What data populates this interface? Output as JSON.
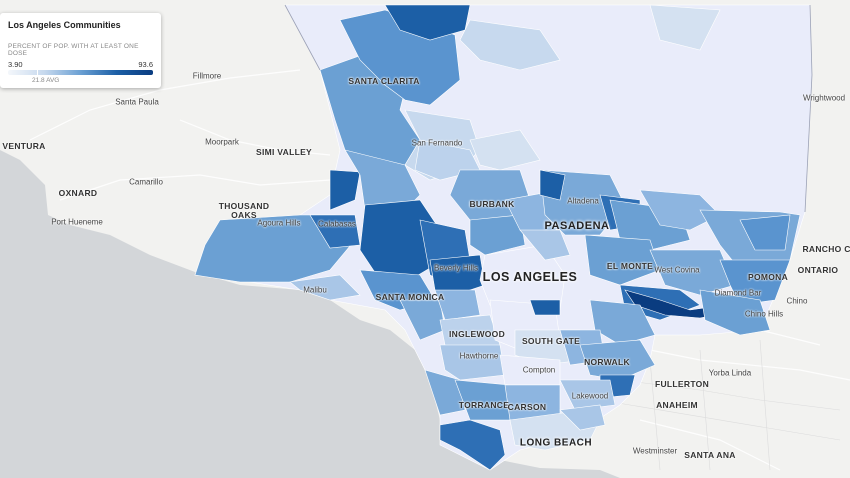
{
  "legend": {
    "title": "Los Angeles Communities",
    "subtitle": "PERCENT OF POP. WITH AT LEAST ONE DOSE",
    "min": "3.90",
    "max": "93.6",
    "avg": "21.8 AVG",
    "colors": [
      "#f4f7fb",
      "#c7d9ee",
      "#6ba0d3",
      "#1c5fa6",
      "#0a3c80"
    ]
  },
  "places": {
    "fillmore": "Fillmore",
    "santa_paula": "Santa Paula",
    "ventura": "VENTURA",
    "moorpark": "Moorpark",
    "simi_valley": "SIMI VALLEY",
    "oxnard": "OXNARD",
    "camarillo": "Camarillo",
    "thousand_oaks_1": "THOUSAND",
    "thousand_oaks_2": "OAKS",
    "port_hueneme": "Port Hueneme",
    "santa_clarita": "SANTA CLARITA",
    "wrightwood": "Wrightwood",
    "san_fernando": "San Fernando",
    "agoura_hills": "Agoura Hills",
    "calabasas": "Calabasas",
    "burbank": "BURBANK",
    "altadena": "Altadena",
    "pasadena": "PASADENA",
    "rancho_co": "RANCHO CO",
    "ontario": "ONTARIO",
    "el_monte": "EL MONTE",
    "west_covina": "West Covina",
    "pomona": "POMONA",
    "beverly_hills": "Beverly Hills",
    "los_angeles": "LOS ANGELES",
    "malibu": "Malibu",
    "santa_monica": "SANTA MONICA",
    "diamond_bar": "Diamond Bar",
    "chino": "Chino",
    "chino_hills": "Chino Hills",
    "inglewood": "INGLEWOOD",
    "south_gate": "SOUTH GATE",
    "hawthorne": "Hawthorne",
    "norwalk": "NORWALK",
    "compton": "Compton",
    "yorba_linda": "Yorba Linda",
    "fullerton": "FULLERTON",
    "lakewood": "Lakewood",
    "anaheim": "ANAHEIM",
    "torrance": "TORRANCE",
    "carson": "CARSON",
    "long_beach": "LONG BEACH",
    "westminster": "Westminster",
    "santa_ana": "SANTA ANA"
  }
}
